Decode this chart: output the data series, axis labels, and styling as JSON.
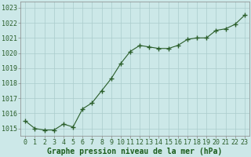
{
  "x": [
    0,
    1,
    2,
    3,
    4,
    5,
    6,
    7,
    8,
    9,
    10,
    11,
    12,
    13,
    14,
    15,
    16,
    17,
    18,
    19,
    20,
    21,
    22,
    23
  ],
  "y": [
    1015.5,
    1015.0,
    1014.9,
    1014.9,
    1015.3,
    1015.1,
    1016.3,
    1016.7,
    1017.5,
    1018.3,
    1019.3,
    1020.1,
    1020.5,
    1020.4,
    1020.3,
    1020.3,
    1020.5,
    1020.9,
    1021.0,
    1021.0,
    1021.5,
    1021.6,
    1021.9,
    1022.5
  ],
  "line_color": "#2a5e2a",
  "marker": "+",
  "marker_size": 4,
  "marker_color": "#2a5e2a",
  "bg_color": "#cce8e8",
  "grid_color": "#aacccc",
  "xlabel": "Graphe pression niveau de la mer (hPa)",
  "xlabel_color": "#1a5c1a",
  "xlabel_fontsize": 7,
  "tick_fontsize": 6,
  "ylim": [
    1014.5,
    1023.4
  ],
  "yticks": [
    1015,
    1016,
    1017,
    1018,
    1019,
    1020,
    1021,
    1022,
    1023
  ],
  "xticks": [
    0,
    1,
    2,
    3,
    4,
    5,
    6,
    7,
    8,
    9,
    10,
    11,
    12,
    13,
    14,
    15,
    16,
    17,
    18,
    19,
    20,
    21,
    22,
    23
  ],
  "spine_color": "#888888",
  "xlim": [
    -0.5,
    23.5
  ]
}
